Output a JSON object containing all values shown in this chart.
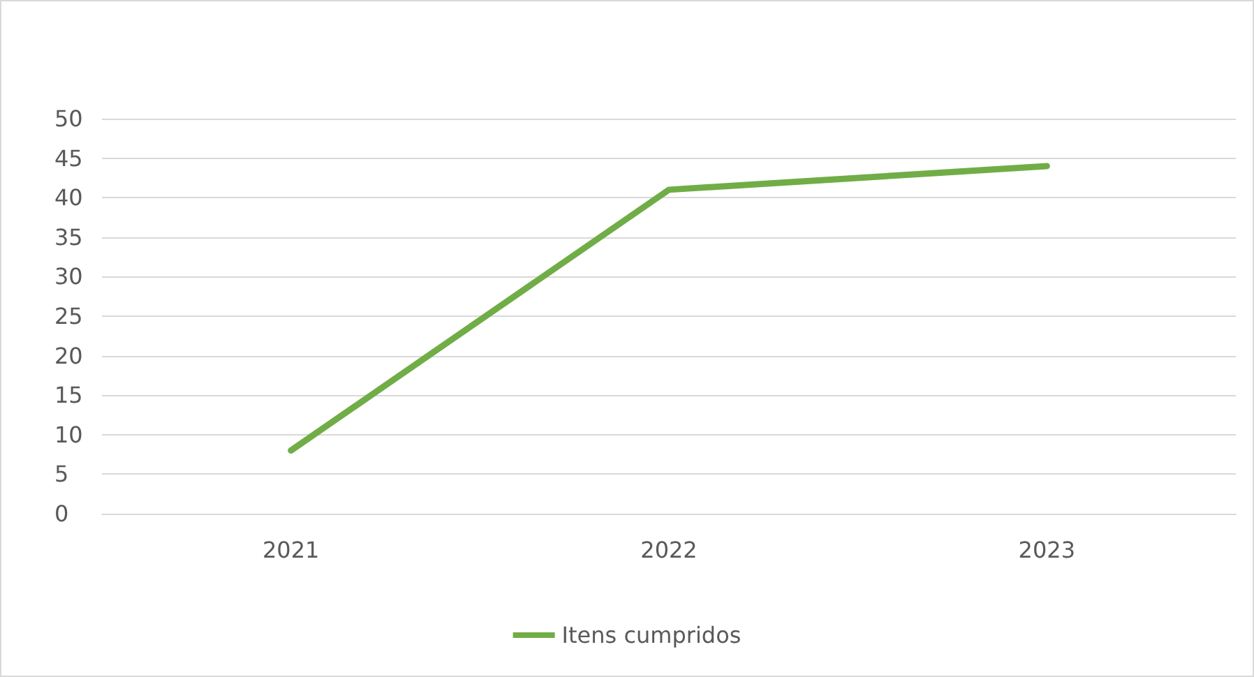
{
  "chart_data": {
    "type": "line",
    "categories": [
      "2021",
      "2022",
      "2023"
    ],
    "series": [
      {
        "name": "Itens cumpridos",
        "color": "#70ad47",
        "values": [
          8,
          41,
          44
        ]
      }
    ],
    "ylim": [
      0,
      50
    ],
    "yticks": [
      0,
      5,
      10,
      15,
      20,
      25,
      30,
      35,
      40,
      45,
      50
    ],
    "grid": "y",
    "legend": "bottom",
    "marker": "none",
    "line_style": "solid"
  }
}
